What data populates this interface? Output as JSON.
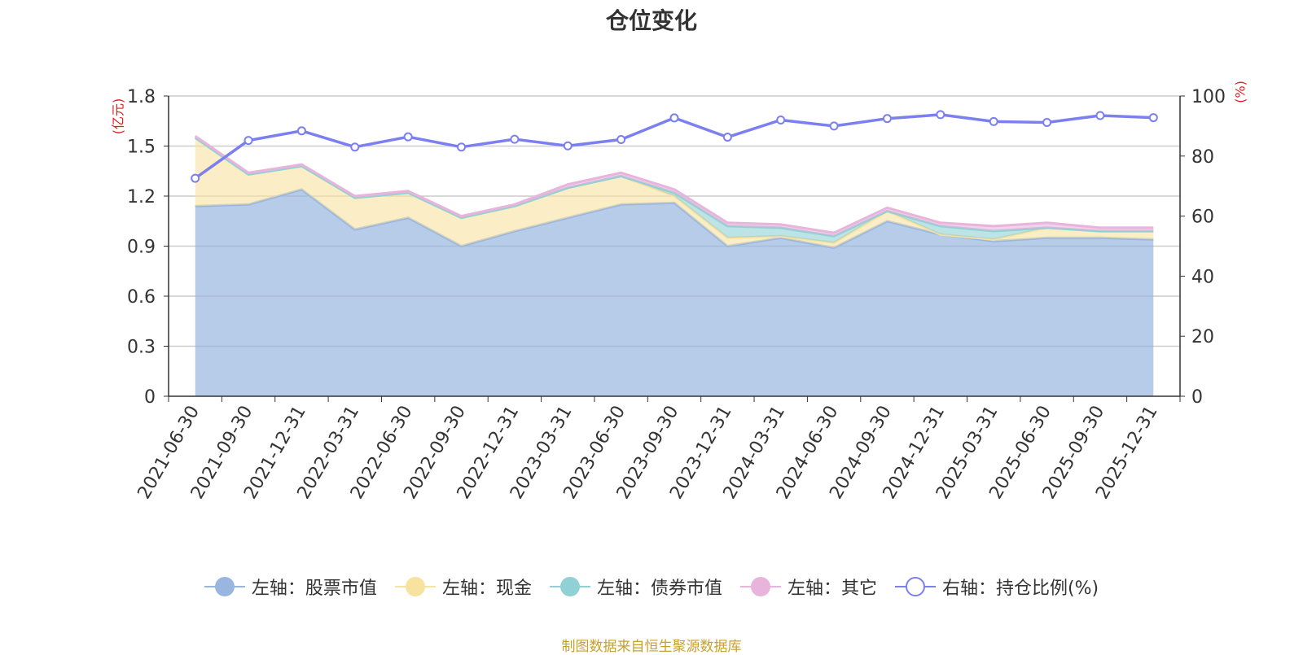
{
  "chart_data": {
    "type": "area",
    "title": "仓位变化",
    "left_axis_unit": "(亿元)",
    "right_axis_unit": "(%)",
    "left_ylim": [
      0,
      1.8
    ],
    "left_ticks": [
      "0",
      "0.3",
      "0.6",
      "0.9",
      "1.2",
      "1.5",
      "1.8"
    ],
    "right_ylim": [
      0,
      100
    ],
    "right_ticks": [
      "0",
      "20",
      "40",
      "60",
      "80",
      "100"
    ],
    "categories": [
      "2021-06-30",
      "2021-09-30",
      "2021-12-31",
      "2022-03-31",
      "2022-06-30",
      "2022-09-30",
      "2022-12-31",
      "2023-03-31",
      "2023-06-30",
      "2023-09-30",
      "2023-12-31",
      "2024-03-31",
      "2024-06-30",
      "2024-09-30",
      "2024-12-31",
      "2025-03-31",
      "2025-06-30",
      "2025-09-30",
      "2025-12-31"
    ],
    "series": [
      {
        "name": "左轴：股票市值",
        "axis": "left",
        "color": "#99b6e0",
        "values": [
          1.14,
          1.15,
          1.24,
          1.0,
          1.07,
          0.9,
          0.99,
          1.07,
          1.15,
          1.16,
          0.9,
          0.95,
          0.89,
          1.05,
          0.97,
          0.93,
          0.95,
          0.95,
          0.94
        ]
      },
      {
        "name": "左轴：现金",
        "axis": "left",
        "color": "#f8e2a0",
        "values": [
          0.41,
          0.18,
          0.14,
          0.19,
          0.15,
          0.17,
          0.15,
          0.18,
          0.17,
          0.04,
          0.05,
          0.01,
          0.03,
          0.06,
          0.0,
          0.01,
          0.06,
          0.04,
          0.05
        ]
      },
      {
        "name": "左轴：债券市值",
        "axis": "left",
        "color": "#8fd1d4",
        "values": [
          0.0,
          0.0,
          0.0,
          0.0,
          0.0,
          0.0,
          0.0,
          0.0,
          0.0,
          0.02,
          0.07,
          0.05,
          0.04,
          0.0,
          0.05,
          0.05,
          0.0,
          0.0,
          0.0
        ]
      },
      {
        "name": "左轴：其它",
        "axis": "left",
        "color": "#e8b4dc",
        "values": [
          0.01,
          0.01,
          0.01,
          0.01,
          0.01,
          0.01,
          0.01,
          0.02,
          0.02,
          0.02,
          0.02,
          0.02,
          0.02,
          0.02,
          0.02,
          0.03,
          0.03,
          0.02,
          0.02
        ]
      },
      {
        "name": "右轴：持仓比例(%)",
        "axis": "right",
        "color": "#7b7ff0",
        "values": [
          72.6,
          85.2,
          88.4,
          83.0,
          86.4,
          83.0,
          85.6,
          83.4,
          85.5,
          92.7,
          86.3,
          92.0,
          90.0,
          92.5,
          93.8,
          91.5,
          91.2,
          93.5,
          92.8
        ]
      }
    ]
  },
  "source_note": "制图数据来自恒生聚源数据库"
}
